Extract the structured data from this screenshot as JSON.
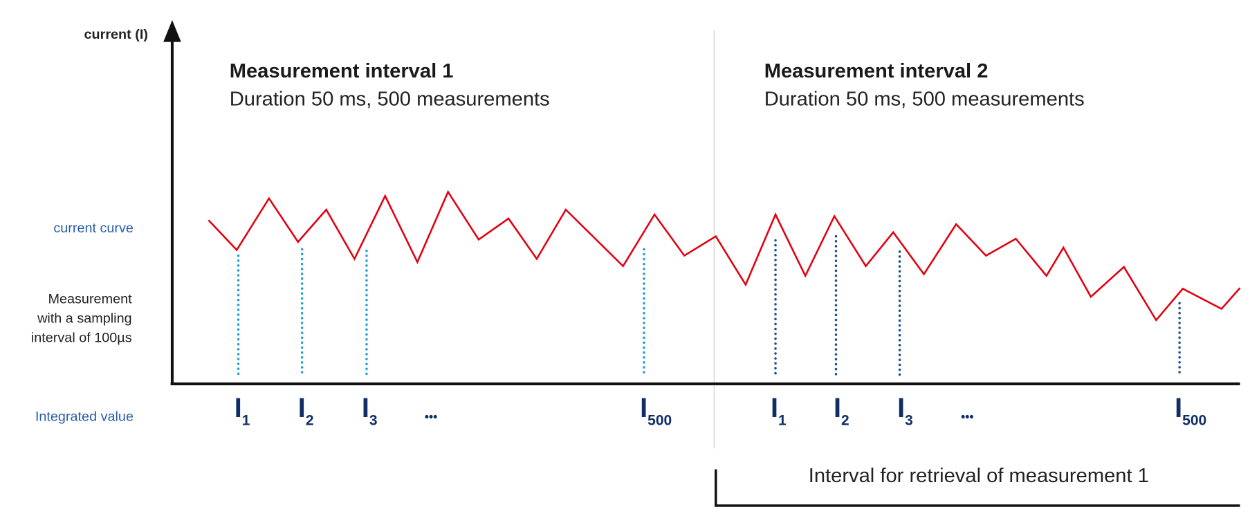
{
  "axis": {
    "y_label": "current (I)"
  },
  "colors": {
    "curve": "#e2000f",
    "samples_interval_1": "#1ea0d8",
    "samples_interval_2": "#1b4f8f",
    "integrated": "#0e2f66",
    "label_blue": "#2a5ea6"
  },
  "interval_1": {
    "title": "Measurement interval 1",
    "subtitle": "Duration 50 ms, 500 measurements",
    "labels": [
      {
        "base": "I",
        "sub": "1"
      },
      {
        "base": "I",
        "sub": "2"
      },
      {
        "base": "I",
        "sub": "3"
      },
      {
        "base": "I",
        "sub": "500"
      }
    ],
    "ellipsis": "•••"
  },
  "interval_2": {
    "title": "Measurement interval 2",
    "subtitle": "Duration 50 ms, 500 measurements",
    "labels": [
      {
        "base": "I",
        "sub": "1"
      },
      {
        "base": "I",
        "sub": "2"
      },
      {
        "base": "I",
        "sub": "3"
      },
      {
        "base": "I",
        "sub": "500"
      }
    ],
    "ellipsis": "•••"
  },
  "legend": {
    "current_curve": "current curve",
    "measurement_lines": [
      "Measurement",
      "with a sampling",
      "interval of 100µs"
    ],
    "integrated_value": "Integrated value"
  },
  "retrieval": {
    "label": "Interval for retrieval of measurement 1"
  }
}
